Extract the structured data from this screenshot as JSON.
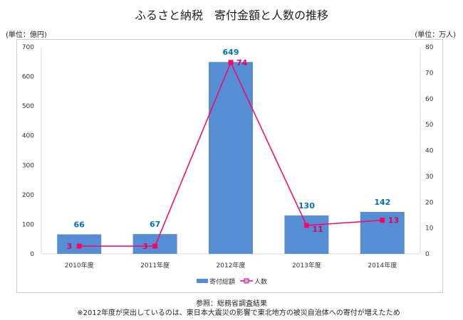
{
  "chart_data": {
    "type": "bar+line",
    "title": "ふるさと納税　寄付金額と人数の推移",
    "categories": [
      "2010年度",
      "2011年度",
      "2012年度",
      "2013年度",
      "2014年度"
    ],
    "series": [
      {
        "name": "寄付総額",
        "type": "bar",
        "axis": "left",
        "color": "#558ed5",
        "label_color": "#0070c0",
        "values": [
          66,
          67,
          649,
          130,
          142
        ]
      },
      {
        "name": "人数",
        "type": "line",
        "axis": "right",
        "color": "#ff0066",
        "label_color": "#e6005c",
        "values": [
          3,
          3,
          74,
          11,
          13
        ]
      }
    ],
    "ylabel_left": "(単位：億円)",
    "ylabel_right": "(単位：万人)",
    "ylim_left": [
      0,
      700
    ],
    "yticks_left": [
      0,
      100,
      200,
      300,
      400,
      500,
      600,
      700
    ],
    "ylim_right": [
      0,
      80
    ],
    "yticks_right": [
      0,
      10,
      20,
      30,
      40,
      50,
      60,
      70,
      80
    ],
    "legend_position": "bottom",
    "notes": [
      "参照：総務省調査結果",
      "※2012年度が突出しているのは、東日本大震災の影響で東北地方の被災自治体への寄付が増えたため"
    ]
  }
}
